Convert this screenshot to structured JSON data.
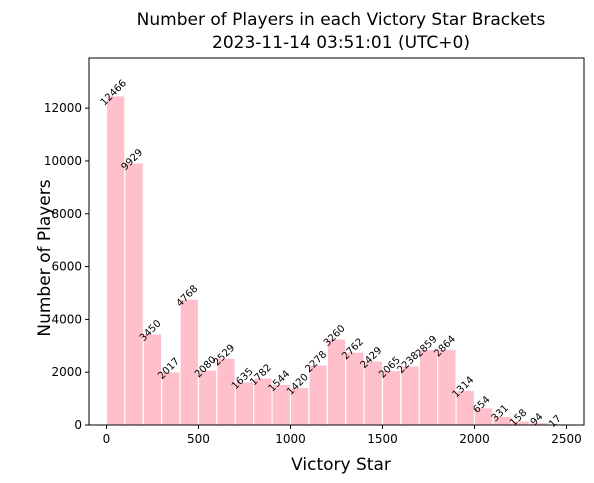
{
  "chart_data": {
    "type": "bar",
    "title": "Number of Players in each Victory Star Brackets",
    "subtitle": "2023-11-14 03:51:01 (UTC+0)",
    "xlabel": "Victory Star",
    "ylabel": "Number of Players",
    "xlim": [
      -95,
      2595
    ],
    "ylim": [
      0,
      13900
    ],
    "xticks": [
      0,
      500,
      1000,
      1500,
      2000,
      2500
    ],
    "yticks": [
      0,
      2000,
      4000,
      6000,
      8000,
      10000,
      12000
    ],
    "bin_width": 100,
    "grid": false,
    "bar_color": "#ffc0cb",
    "bar_edge_color": "#ffffff",
    "bins": [
      {
        "start": 0,
        "value": 12466,
        "label": "12466"
      },
      {
        "start": 100,
        "value": 9929,
        "label": "9929"
      },
      {
        "start": 200,
        "value": 3450,
        "label": "3450"
      },
      {
        "start": 300,
        "value": 2017,
        "label": "2017"
      },
      {
        "start": 400,
        "value": 4768,
        "label": "4768"
      },
      {
        "start": 500,
        "value": 2080,
        "label": "2080"
      },
      {
        "start": 600,
        "value": 2529,
        "label": "2529"
      },
      {
        "start": 700,
        "value": 1635,
        "label": "1635"
      },
      {
        "start": 800,
        "value": 1782,
        "label": "1782"
      },
      {
        "start": 900,
        "value": 1544,
        "label": "1544"
      },
      {
        "start": 1000,
        "value": 1420,
        "label": "1420"
      },
      {
        "start": 1100,
        "value": 2278,
        "label": "2278"
      },
      {
        "start": 1200,
        "value": 3260,
        "label": "3260"
      },
      {
        "start": 1300,
        "value": 2762,
        "label": "2762"
      },
      {
        "start": 1400,
        "value": 2429,
        "label": "2429"
      },
      {
        "start": 1500,
        "value": 2065,
        "label": "2065"
      },
      {
        "start": 1600,
        "value": 2238,
        "label": "2238"
      },
      {
        "start": 1700,
        "value": 2859,
        "label": "2859"
      },
      {
        "start": 1800,
        "value": 2864,
        "label": "2864"
      },
      {
        "start": 1900,
        "value": 1314,
        "label": "1314"
      },
      {
        "start": 2000,
        "value": 654,
        "label": "654"
      },
      {
        "start": 2100,
        "value": 331,
        "label": "331"
      },
      {
        "start": 2200,
        "value": 158,
        "label": "158"
      },
      {
        "start": 2300,
        "value": 94,
        "label": "94"
      },
      {
        "start": 2400,
        "value": 17,
        "label": "17"
      }
    ]
  }
}
